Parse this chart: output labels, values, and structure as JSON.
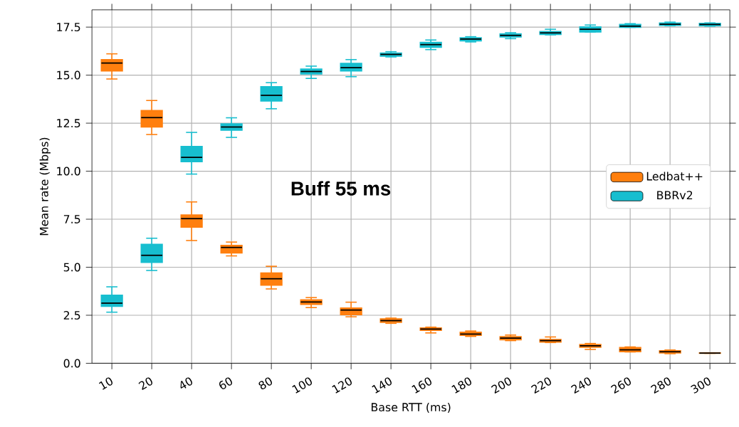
{
  "chart_data": {
    "type": "box",
    "xlabel": "Base RTT (ms)",
    "ylabel": "Mean rate (Mbps)",
    "annotations": [
      "Buff 55 ms"
    ],
    "categories": [
      "10",
      "20",
      "40",
      "60",
      "80",
      "100",
      "120",
      "140",
      "160",
      "180",
      "200",
      "220",
      "240",
      "260",
      "280",
      "300"
    ],
    "ylim": [
      0,
      18.4
    ],
    "yticks": [
      {
        "value": 0,
        "label": "0.0"
      },
      {
        "value": 2.5,
        "label": "2.5"
      },
      {
        "value": 5,
        "label": "5.0"
      },
      {
        "value": 7.5,
        "label": "7.5"
      },
      {
        "value": 10,
        "label": "10.0"
      },
      {
        "value": 12.5,
        "label": "12.5"
      },
      {
        "value": 15,
        "label": "15.0"
      },
      {
        "value": 17.5,
        "label": "17.5"
      }
    ],
    "grid": true,
    "legend": "right",
    "series": [
      {
        "name": "Ledbat++",
        "color": "#ff7f0e",
        "boxes": [
          {
            "low": 14.8,
            "q1": 15.22,
            "median": 15.63,
            "q3": 15.81,
            "high": 16.11
          },
          {
            "low": 11.91,
            "q1": 12.3,
            "median": 12.79,
            "q3": 13.16,
            "high": 13.68
          },
          {
            "low": 6.39,
            "q1": 7.09,
            "median": 7.53,
            "q3": 7.72,
            "high": 8.4
          },
          {
            "low": 5.59,
            "q1": 5.74,
            "median": 6.03,
            "q3": 6.14,
            "high": 6.31
          },
          {
            "low": 3.87,
            "q1": 4.07,
            "median": 4.4,
            "q3": 4.7,
            "high": 5.05
          },
          {
            "low": 2.9,
            "q1": 3.07,
            "median": 3.19,
            "q3": 3.3,
            "high": 3.42
          },
          {
            "low": 2.42,
            "q1": 2.53,
            "median": 2.77,
            "q3": 2.88,
            "high": 3.18
          },
          {
            "low": 2.08,
            "q1": 2.13,
            "median": 2.22,
            "q3": 2.31,
            "high": 2.35
          },
          {
            "low": 1.58,
            "q1": 1.71,
            "median": 1.78,
            "q3": 1.84,
            "high": 1.88
          },
          {
            "low": 1.4,
            "q1": 1.45,
            "median": 1.52,
            "q3": 1.62,
            "high": 1.68
          },
          {
            "low": 1.18,
            "q1": 1.22,
            "median": 1.31,
            "q3": 1.39,
            "high": 1.47
          },
          {
            "low": 1.08,
            "q1": 1.1,
            "median": 1.18,
            "q3": 1.24,
            "high": 1.37
          },
          {
            "low": 0.72,
            "q1": 0.83,
            "median": 0.91,
            "q3": 0.98,
            "high": 1.03
          },
          {
            "low": 0.59,
            "q1": 0.6,
            "median": 0.7,
            "q3": 0.82,
            "high": 0.85
          },
          {
            "low": 0.5,
            "q1": 0.54,
            "median": 0.6,
            "q3": 0.65,
            "high": 0.69
          },
          {
            "low": 0.52,
            "q1": 0.52,
            "median": 0.53,
            "q3": 0.54,
            "high": 0.54
          }
        ]
      },
      {
        "name": "BBRv2",
        "color": "#17becf",
        "boxes": [
          {
            "low": 2.66,
            "q1": 2.96,
            "median": 3.13,
            "q3": 3.54,
            "high": 3.98
          },
          {
            "low": 4.83,
            "q1": 5.25,
            "median": 5.62,
            "q3": 6.19,
            "high": 6.51
          },
          {
            "low": 9.85,
            "q1": 10.49,
            "median": 10.72,
            "q3": 11.29,
            "high": 12.02
          },
          {
            "low": 11.76,
            "q1": 12.13,
            "median": 12.3,
            "q3": 12.46,
            "high": 12.78
          },
          {
            "low": 13.25,
            "q1": 13.65,
            "median": 13.95,
            "q3": 14.4,
            "high": 14.61
          },
          {
            "low": 14.83,
            "q1": 15.06,
            "median": 15.19,
            "q3": 15.32,
            "high": 15.47
          },
          {
            "low": 14.92,
            "q1": 15.22,
            "median": 15.39,
            "q3": 15.61,
            "high": 15.81
          },
          {
            "low": 15.95,
            "q1": 15.99,
            "median": 16.08,
            "q3": 16.15,
            "high": 16.22
          },
          {
            "low": 16.33,
            "q1": 16.45,
            "median": 16.59,
            "q3": 16.71,
            "high": 16.83
          },
          {
            "low": 16.73,
            "q1": 16.78,
            "median": 16.88,
            "q3": 16.95,
            "high": 17.0
          },
          {
            "low": 16.9,
            "q1": 16.99,
            "median": 17.07,
            "q3": 17.15,
            "high": 17.21
          },
          {
            "low": 17.1,
            "q1": 17.12,
            "median": 17.2,
            "q3": 17.27,
            "high": 17.39
          },
          {
            "low": 17.25,
            "q1": 17.25,
            "median": 17.39,
            "q3": 17.51,
            "high": 17.61
          },
          {
            "low": 17.49,
            "q1": 17.49,
            "median": 17.55,
            "q3": 17.64,
            "high": 17.68
          },
          {
            "low": 17.57,
            "q1": 17.59,
            "median": 17.65,
            "q3": 17.72,
            "high": 17.76
          },
          {
            "low": 17.55,
            "q1": 17.57,
            "median": 17.64,
            "q3": 17.7,
            "high": 17.72
          }
        ]
      }
    ]
  }
}
